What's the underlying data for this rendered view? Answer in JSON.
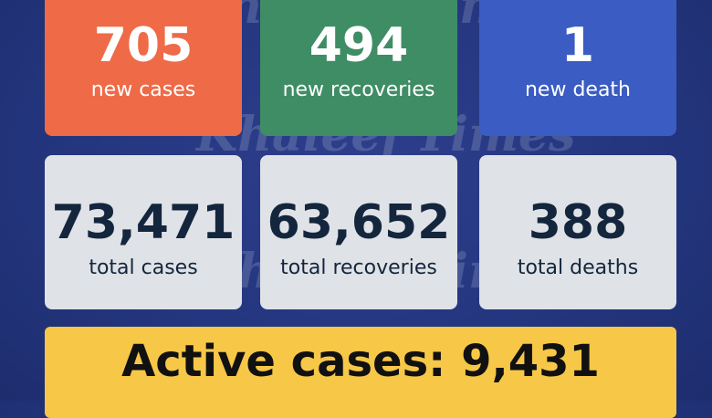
{
  "colors": {
    "background": "#24367f",
    "new_cases": "#ef6a47",
    "new_recoveries": "#3f8d65",
    "new_death": "#3b5cc2",
    "total_card": "#dfe2e6",
    "active_banner": "#f7c748"
  },
  "stats": {
    "new_cases": {
      "value": "705",
      "label": "new cases"
    },
    "new_recoveries": {
      "value": "494",
      "label": "new recoveries"
    },
    "new_death": {
      "value": "1",
      "label": "new death"
    },
    "total_cases": {
      "value": "73,471",
      "label": "total cases"
    },
    "total_recoveries": {
      "value": "63,652",
      "label": "total recoveries"
    },
    "total_deaths": {
      "value": "388",
      "label": "total deaths"
    }
  },
  "active": {
    "text": "Active cases: 9,431"
  },
  "watermark": {
    "text": "Khaleej Times"
  }
}
